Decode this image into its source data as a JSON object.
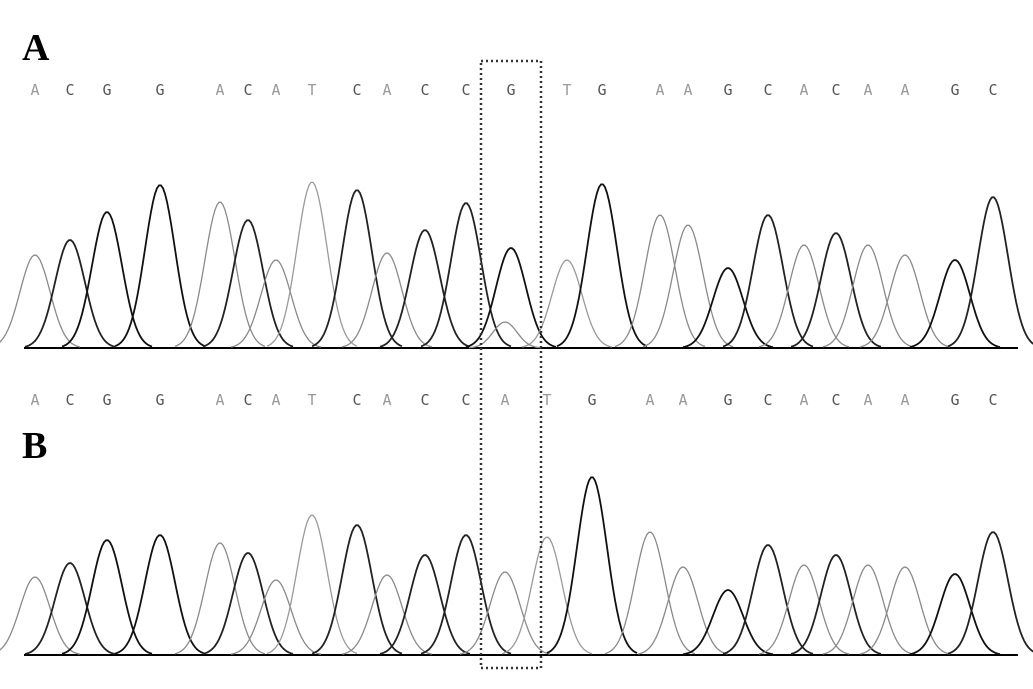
{
  "panels": [
    {
      "label": "A",
      "sequence": [
        "A",
        "C",
        "G",
        "G",
        "A",
        "C",
        "A",
        "T",
        "C",
        "A",
        "C",
        "C",
        "G",
        "T",
        "G",
        "A",
        "A",
        "G",
        "C",
        "A",
        "C",
        "A",
        "A",
        "G",
        "C"
      ]
    },
    {
      "label": "B",
      "sequence": [
        "A",
        "C",
        "G",
        "G",
        "A",
        "C",
        "A",
        "T",
        "C",
        "A",
        "C",
        "C",
        "A",
        "T",
        "G",
        "A",
        "A",
        "G",
        "C",
        "A",
        "C",
        "A",
        "A",
        "G",
        "C"
      ]
    }
  ],
  "highlight": {
    "position": 13,
    "style": "dotted-box"
  },
  "colors": {
    "G": "#111111",
    "C": "#222222",
    "A": "#8a8a8a",
    "T": "#9a9a9a",
    "baseline": "#000000"
  }
}
